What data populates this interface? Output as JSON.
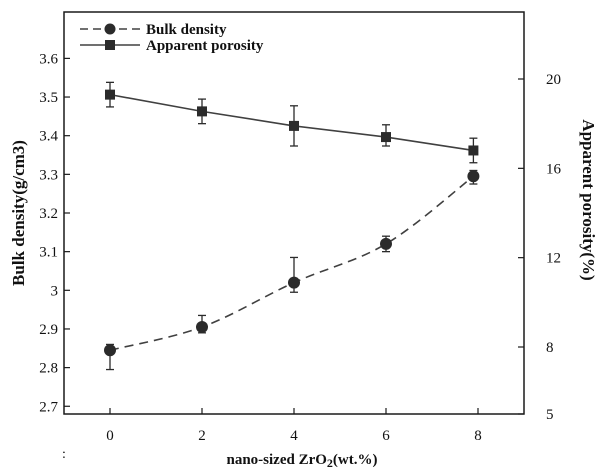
{
  "chart_data": {
    "type": "line",
    "title": "",
    "xlabel": {
      "main": "nano-sized ZrO",
      "sub": "2",
      "tail": "(wt.%)"
    },
    "ylabel_left": "Bulk density(g/cm3)",
    "ylabel_right": "Apparent porosity(%)",
    "x_ticks": [
      "0",
      "2",
      "4",
      "6",
      "8"
    ],
    "x_range": [
      -1,
      9
    ],
    "y_left_ticks": [
      "2.7",
      "2.8",
      "2.9",
      "3",
      "3.1",
      "3.2",
      "3.3",
      "3.4",
      "3.5",
      "3.6"
    ],
    "y_left_range": [
      2.68,
      3.72
    ],
    "y_right_ticks": [
      "5",
      "8",
      "12",
      "16",
      "20"
    ],
    "y_right_range": [
      5,
      23
    ],
    "grid": false,
    "legend_position": "top-left",
    "series": [
      {
        "name": "Bulk density",
        "axis": "left",
        "style": "dashed",
        "marker": "circle",
        "x": [
          0,
          2,
          4,
          6,
          7.9
        ],
        "y": [
          2.845,
          2.905,
          3.02,
          3.12,
          3.295
        ],
        "err_low": [
          0.05,
          0.015,
          0.025,
          0.02,
          0.02
        ],
        "err_high": [
          0.015,
          0.03,
          0.065,
          0.02,
          0.015
        ]
      },
      {
        "name": "Apparent porosity",
        "axis": "right",
        "style": "solid",
        "marker": "square",
        "x": [
          0,
          2,
          4,
          6,
          7.9
        ],
        "y": [
          19.3,
          18.55,
          17.9,
          17.4,
          16.8
        ],
        "err_low": [
          0.55,
          0.55,
          0.9,
          0.4,
          0.55
        ],
        "err_high": [
          0.55,
          0.55,
          0.9,
          0.55,
          0.55
        ]
      }
    ],
    "colors": {
      "line": "#404040",
      "marker": "#2b2b2b",
      "axis": "#1a1a1a"
    }
  },
  "footnote_mark": ":"
}
